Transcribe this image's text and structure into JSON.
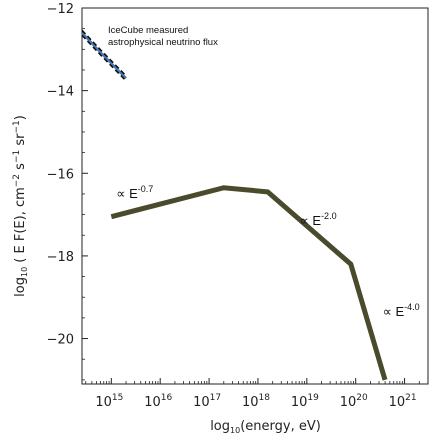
{
  "chart_data": {
    "type": "line",
    "title": "",
    "xlabel": {
      "pre": "log",
      "sub": "10",
      "post": "(energy, eV)"
    },
    "ylabel": {
      "pre": "log",
      "sub": "10",
      "post": " ( E F(E), cm",
      "sup1": "−2",
      "mid": " s",
      "sup2": "−1",
      "mid2": " sr",
      "sup3": "−1",
      "end": ")"
    },
    "xlim": [
      14.4,
      21.5
    ],
    "ylim": [
      -21.1,
      -12
    ],
    "yticks": [
      -12,
      -14,
      -16,
      -18,
      -20
    ],
    "ytick_labels": [
      "−12",
      "−14",
      "−16",
      "−18",
      "−20"
    ],
    "xticks": [
      15,
      16,
      17,
      18,
      19,
      20,
      21
    ],
    "xtick_labels": [
      {
        "base": "10",
        "exp": "15"
      },
      {
        "base": "10",
        "exp": "16"
      },
      {
        "base": "10",
        "exp": "17"
      },
      {
        "base": "10",
        "exp": "18"
      },
      {
        "base": "10",
        "exp": "19"
      },
      {
        "base": "10",
        "exp": "20"
      },
      {
        "base": "10",
        "exp": "21"
      }
    ],
    "series": [
      {
        "name": "",
        "color": "#4a4a2c",
        "x": [
          15.0,
          17.3,
          18.2,
          19.9,
          20.6
        ],
        "y": [
          -17.05,
          -16.35,
          -16.45,
          -18.2,
          -21.0
        ]
      },
      {
        "name": "IceCube measured astrophysical neutrino flux",
        "color": "#4b78b8",
        "x": [
          14.4,
          14.8,
          15.3
        ],
        "y": [
          -12.6,
          -13.1,
          -13.7
        ]
      }
    ],
    "annotations": [
      {
        "text": "∝ E",
        "sup": "-0.7",
        "x": 15.1,
        "y": -16.6
      },
      {
        "text": "∝ E",
        "sup": "-2.0",
        "x": 18.85,
        "y": -17.25
      },
      {
        "text": "∝ E",
        "sup": "-4.0",
        "x": 20.55,
        "y": -19.45
      }
    ],
    "legend_text": [
      "IceCube measured",
      "astrophysical neutrino flux"
    ]
  }
}
